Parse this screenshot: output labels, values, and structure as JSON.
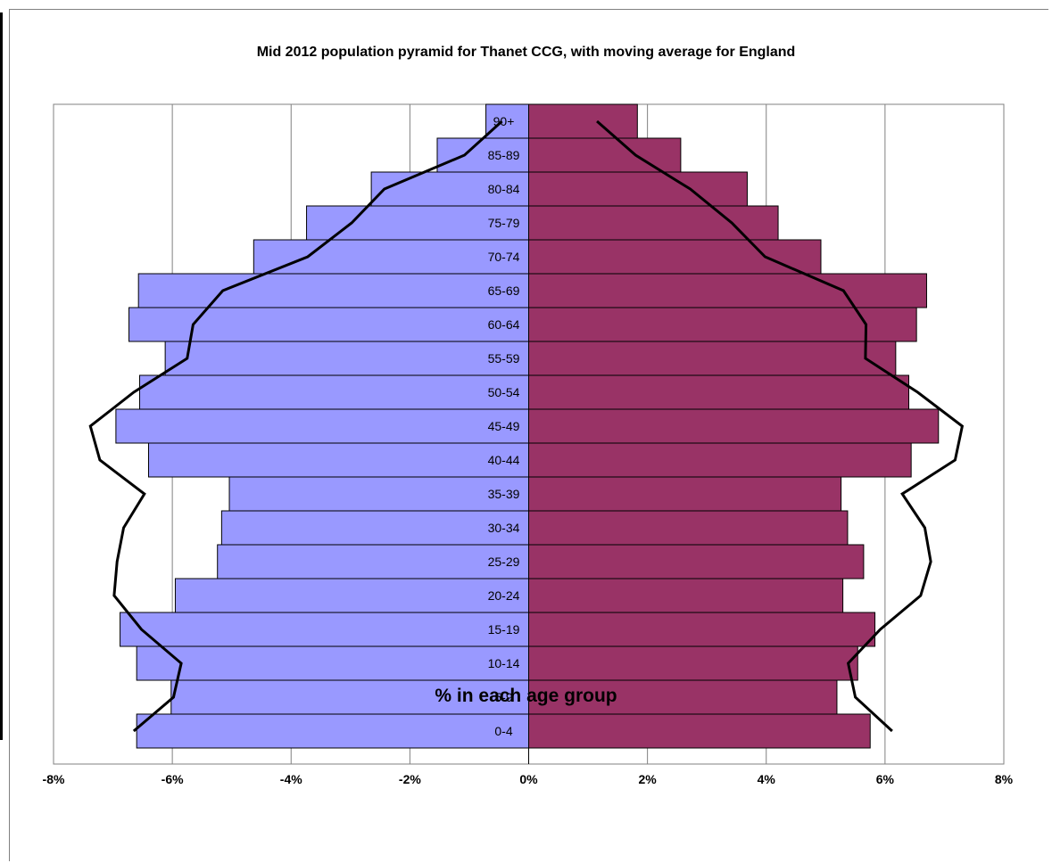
{
  "chart_data": {
    "type": "bar",
    "title": "Mid 2012 population pyramid for Thanet CCG, with moving average for England",
    "xlabel": "% in each age group",
    "ylabel": "",
    "xlim": [
      -8,
      8
    ],
    "x_ticks": [
      "-8%",
      "-6%",
      "-4%",
      "-2%",
      "0%",
      "2%",
      "4%",
      "6%",
      "8%"
    ],
    "x_tick_values": [
      -8,
      -6,
      -4,
      -2,
      0,
      2,
      4,
      6,
      8
    ],
    "grid": true,
    "categories": [
      "0-4",
      "5-9",
      "10-14",
      "15-19",
      "20-24",
      "25-29",
      "30-34",
      "35-39",
      "40-44",
      "45-49",
      "50-54",
      "55-59",
      "60-64",
      "65-69",
      "70-74",
      "75-79",
      "80-84",
      "85-89",
      "90+"
    ],
    "series": [
      {
        "kind": "bar",
        "color": "#9999ff",
        "values": [
          -6.6,
          -6.02,
          -6.6,
          -6.88,
          -5.95,
          -5.24,
          -5.17,
          -5.04,
          -6.4,
          -6.95,
          -6.55,
          -6.12,
          -6.73,
          -6.57,
          -4.63,
          -3.74,
          -2.65,
          -1.54,
          -0.72
        ]
      },
      {
        "kind": "bar",
        "color": "#993366",
        "values": [
          5.75,
          5.19,
          5.54,
          5.83,
          5.29,
          5.64,
          5.37,
          5.26,
          6.44,
          6.9,
          6.4,
          6.18,
          6.53,
          6.7,
          4.92,
          4.2,
          3.68,
          2.56,
          1.83
        ]
      },
      {
        "kind": "line",
        "color": "#000000",
        "values": [
          -6.65,
          -5.98,
          -5.85,
          -6.52,
          -6.98,
          -6.93,
          -6.82,
          -6.47,
          -7.22,
          -7.38,
          -6.65,
          -5.75,
          -5.65,
          -5.15,
          -3.72,
          -2.98,
          -2.43,
          -1.08,
          -0.45
        ]
      },
      {
        "kind": "line",
        "color": "#000000",
        "values": [
          6.12,
          5.5,
          5.38,
          5.92,
          6.6,
          6.77,
          6.67,
          6.29,
          7.18,
          7.3,
          6.55,
          5.67,
          5.68,
          5.3,
          3.98,
          3.42,
          2.72,
          1.8,
          1.15
        ]
      }
    ]
  }
}
